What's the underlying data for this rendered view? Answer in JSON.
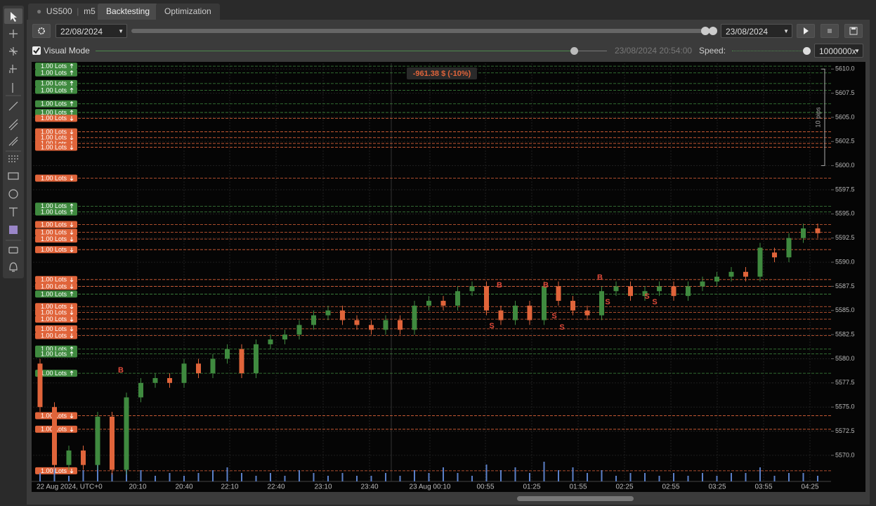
{
  "tabs": {
    "symbol": "US500",
    "timeframe": "m5",
    "backtesting": "Backtesting",
    "optimization": "Optimization"
  },
  "controls": {
    "start_date": "22/08/2024",
    "end_date": "23/08/2024",
    "visual_mode": "Visual Mode",
    "current_time": "23/08/2024 20:54:00",
    "speed_label": "Speed:",
    "speed": "1000000x"
  },
  "chart_data": {
    "type": "candlestick",
    "pnl_label": "-961.38 $ (-10%)",
    "range_label": "10 pips",
    "ylim": [
      5567.3,
      5610.6
    ],
    "yticks": [
      {
        "value": 5610,
        "label": "5610.0"
      },
      5607.5,
      {
        "value": 5605,
        "label": "5605.0"
      },
      5602.5,
      {
        "value": 5600,
        "label": "5600.0"
      },
      5597.5,
      {
        "value": 5595,
        "label": "5595.0"
      },
      5592.5,
      {
        "value": 5590,
        "label": "5590.0"
      },
      5587.5,
      {
        "value": 5585,
        "label": "5585.0"
      },
      5582.5,
      {
        "value": 5580,
        "label": "5580.0"
      },
      5577.5,
      {
        "value": 5575,
        "label": "5575.0"
      },
      5572.5,
      {
        "value": 5570,
        "label": "5570.0"
      }
    ],
    "time_labels": [
      "22 Aug 2024, UTC+0",
      "20:10",
      "20:40",
      "22:10",
      "22:40",
      "23:10",
      "23:40",
      "23 Aug 00:10",
      "00:55",
      "01:25",
      "01:55",
      "02:25",
      "02:55",
      "03:25",
      "03:55",
      "04:25"
    ],
    "grid": true,
    "colors": {
      "up": "#3f8a3f",
      "down": "#e0643a"
    },
    "open": [
      5579.5,
      5575,
      5569,
      5570.5,
      5569,
      5574,
      5568.5,
      5576,
      5577.5,
      5578,
      5577.5,
      5579.5,
      5578.5,
      5580,
      5581,
      5578.5,
      5581.5,
      5582,
      5582.5,
      5583.5,
      5584.5,
      5585,
      5584,
      5583.5,
      5583,
      5584,
      5583,
      5585.5,
      5586,
      5585.5,
      5587,
      5587.5,
      5585,
      5584,
      5585.5,
      5584,
      5587.5,
      5586,
      5585,
      5584.5,
      5587,
      5587.5,
      5586.5,
      5587,
      5587.5,
      5586.5,
      5587.5,
      5588,
      5588.5,
      5589,
      5588.5,
      5591,
      5590.5,
      5592.5,
      5593.5
    ],
    "high": [
      5580,
      5575.5,
      5571,
      5571,
      5574.5,
      5574.5,
      5576.5,
      5578,
      5578.5,
      5578.5,
      5580,
      5580,
      5580.5,
      5581.5,
      5581.5,
      5582,
      5582.5,
      5583,
      5584,
      5585,
      5585.5,
      5585.5,
      5584.5,
      5584,
      5584.5,
      5584.5,
      5586,
      5586.5,
      5586.5,
      5587.5,
      5588,
      5588,
      5585.5,
      5586,
      5586,
      5588,
      5588,
      5586.5,
      5585.5,
      5587.5,
      5588,
      5588,
      5587.5,
      5588,
      5588,
      5588,
      5588.5,
      5589,
      5589.5,
      5589.5,
      5592,
      5591.5,
      5593,
      5594,
      5594
    ],
    "low": [
      5574.5,
      5568.5,
      5568.5,
      5568.5,
      5568.5,
      5568,
      5568,
      5575.5,
      5577,
      5577,
      5577,
      5578,
      5578,
      5579.5,
      5578,
      5578,
      5581,
      5581.5,
      5582,
      5583,
      5584,
      5583.5,
      5583,
      5582.5,
      5582.5,
      5582.5,
      5582.5,
      5585,
      5585,
      5585,
      5586.5,
      5584.5,
      5583.5,
      5583.5,
      5583.5,
      5583.5,
      5585.5,
      5584.5,
      5584,
      5584,
      5586.5,
      5586,
      5586,
      5586.5,
      5586,
      5586,
      5587,
      5587.5,
      5588,
      5588,
      5588,
      5590,
      5590,
      5592,
      5592.5
    ],
    "close": [
      5575,
      5569,
      5570.5,
      5569,
      5574,
      5568.5,
      5576,
      5577.5,
      5578,
      5577.5,
      5579.5,
      5578.5,
      5580,
      5581,
      5578.5,
      5581.5,
      5582,
      5582.5,
      5583.5,
      5584.5,
      5585,
      5584,
      5583.5,
      5583,
      5584,
      5583,
      5585.5,
      5586,
      5585.5,
      5587,
      5587.5,
      5585,
      5584,
      5585.5,
      5584,
      5587.5,
      5586,
      5585,
      5584.5,
      5587,
      5587.5,
      5586.5,
      5587,
      5587.5,
      5586.5,
      5587.5,
      5588,
      5588.5,
      5589,
      5588.5,
      5591.5,
      5590.5,
      5592.5,
      5593.5,
      5593
    ],
    "volume": [
      3,
      5,
      2,
      4,
      6,
      3,
      7,
      4,
      2,
      3,
      2,
      3,
      4,
      5,
      3,
      2,
      3,
      2,
      4,
      3,
      2,
      3,
      2,
      2,
      3,
      2,
      4,
      3,
      5,
      3,
      2,
      6,
      4,
      5,
      3,
      7,
      4,
      5,
      3,
      4,
      2,
      3,
      3,
      2,
      3,
      2,
      3,
      2,
      3,
      3,
      5,
      2,
      3,
      3,
      2
    ],
    "orders": [
      {
        "label": "1.00 Lots",
        "side": "buy",
        "price": 5610.3
      },
      {
        "label": "1.00 Lots",
        "side": "buy",
        "price": 5609.6
      },
      {
        "label": "1.00 Lots",
        "side": "buy",
        "price": 5608.5
      },
      {
        "label": "1.00 Lots",
        "side": "buy",
        "price": 5607.8
      },
      {
        "label": "1.00 Lots",
        "side": "buy",
        "price": 5606.4
      },
      {
        "label": "1.00 Lots",
        "side": "buy",
        "price": 5605.5
      },
      {
        "label": "1.00 Lots",
        "side": "sell",
        "price": 5604.9
      },
      {
        "label": "1.00 Lots",
        "side": "sell",
        "price": 5603.5
      },
      {
        "label": "1.00 Lots",
        "side": "sell",
        "price": 5602.9
      },
      {
        "label": "1.00 Lots",
        "side": "sell",
        "price": 5602.3
      },
      {
        "label": "1.00 Lots",
        "side": "sell",
        "price": 5601.9
      },
      {
        "label": "1.00 Lots",
        "side": "sell",
        "price": 5598.7
      },
      {
        "label": "1.00 Lots",
        "side": "buy",
        "price": 5595.8
      },
      {
        "label": "1.00 Lots",
        "side": "buy",
        "price": 5595.2
      },
      {
        "label": "1.00 Lots",
        "side": "sell",
        "price": 5593.9
      },
      {
        "label": "1.00 Lots",
        "side": "sell",
        "price": 5593.1
      },
      {
        "label": "1.00 Lots",
        "side": "sell",
        "price": 5592.4
      },
      {
        "label": "1.00 Lots",
        "side": "sell",
        "price": 5591.3
      },
      {
        "label": "1.00 Lots",
        "side": "sell",
        "price": 5588.2
      },
      {
        "label": "1.00 Lots",
        "side": "sell",
        "price": 5587.5
      },
      {
        "label": "1.00 Lots",
        "side": "buy",
        "price": 5586.7
      },
      {
        "label": "1.00 Lots",
        "side": "sell",
        "price": 5585.4
      },
      {
        "label": "1.00 Lots",
        "side": "sell",
        "price": 5584.8
      },
      {
        "label": "1.00 Lots",
        "side": "sell",
        "price": 5584.1
      },
      {
        "label": "1.00 Lots",
        "side": "sell",
        "price": 5583.1
      },
      {
        "label": "1.00 Lots",
        "side": "sell",
        "price": 5582.4
      },
      {
        "label": "1.00 Lots",
        "side": "buy",
        "price": 5581.0
      },
      {
        "label": "1.00 Lots",
        "side": "buy",
        "price": 5580.5
      },
      {
        "label": "1.00 Lots",
        "side": "buy",
        "price": 5578.5
      },
      {
        "label": "1.00 Lots",
        "side": "sell",
        "price": 5574.1
      },
      {
        "label": "1.00 Lots",
        "side": "sell",
        "price": 5572.7
      },
      {
        "label": "1.00 Lots",
        "side": "sell",
        "price": 5568.4
      }
    ],
    "markers": [
      "B",
      "B",
      "B",
      "B",
      "S",
      "S",
      "S",
      "S",
      "S",
      "S"
    ]
  }
}
